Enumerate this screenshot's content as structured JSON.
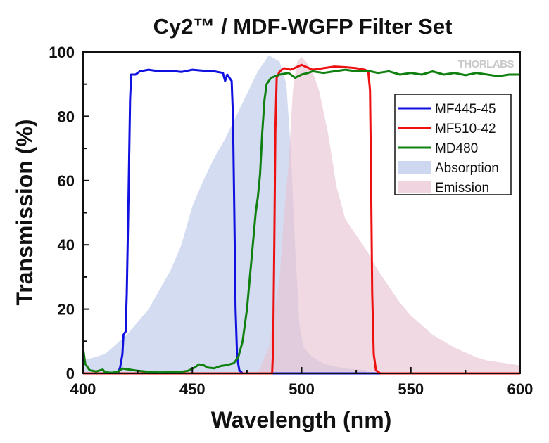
{
  "chart_data": {
    "type": "line",
    "title": "Cy2™ / MDF-WGFP Filter Set",
    "xlabel": "Wavelength (nm)",
    "ylabel": "Transmission (%)",
    "xlim": [
      400,
      600
    ],
    "ylim": [
      0,
      100
    ],
    "x_ticks": [
      "400",
      "450",
      "500",
      "550",
      "600"
    ],
    "y_ticks": [
      "0",
      "20",
      "40",
      "60",
      "80",
      "100"
    ],
    "watermark": "THORLABS",
    "legend_position": "top-right",
    "grid": false,
    "series": [
      {
        "name": "MF445-45",
        "kind": "line",
        "color": "#1010e0",
        "points": [
          [
            400,
            0
          ],
          [
            416,
            0
          ],
          [
            417,
            2
          ],
          [
            418,
            6
          ],
          [
            418.5,
            12
          ],
          [
            419.5,
            13
          ],
          [
            420,
            25
          ],
          [
            420.8,
            55
          ],
          [
            421.5,
            85
          ],
          [
            422,
            93
          ],
          [
            424,
            93
          ],
          [
            426,
            94
          ],
          [
            430,
            94.5
          ],
          [
            435,
            94
          ],
          [
            440,
            94.2
          ],
          [
            445,
            93.8
          ],
          [
            450,
            94.5
          ],
          [
            455,
            94.2
          ],
          [
            460,
            94
          ],
          [
            464,
            93.5
          ],
          [
            465,
            91
          ],
          [
            466,
            93
          ],
          [
            467,
            92
          ],
          [
            468,
            91
          ],
          [
            468.6,
            80
          ],
          [
            469.2,
            50
          ],
          [
            469.8,
            20
          ],
          [
            470.5,
            5
          ],
          [
            471.5,
            1
          ],
          [
            473,
            0
          ],
          [
            600,
            0
          ]
        ]
      },
      {
        "name": "MF510-42",
        "kind": "line",
        "color": "#ee1010",
        "points": [
          [
            400,
            0
          ],
          [
            486.5,
            0
          ],
          [
            487,
            8
          ],
          [
            487.5,
            40
          ],
          [
            488,
            75
          ],
          [
            488.6,
            92
          ],
          [
            490,
            94
          ],
          [
            492,
            95
          ],
          [
            495,
            94.5
          ],
          [
            500,
            96
          ],
          [
            505,
            94.5
          ],
          [
            510,
            95
          ],
          [
            515,
            95.5
          ],
          [
            520,
            95.3
          ],
          [
            525,
            95
          ],
          [
            529,
            94.5
          ],
          [
            530.5,
            94
          ],
          [
            531.3,
            88
          ],
          [
            531.8,
            60
          ],
          [
            532.3,
            25
          ],
          [
            533,
            6
          ],
          [
            534,
            1
          ],
          [
            536,
            0
          ],
          [
            600,
            0
          ]
        ]
      },
      {
        "name": "MD480",
        "kind": "line",
        "color": "#108010",
        "points": [
          [
            400,
            8
          ],
          [
            401,
            3
          ],
          [
            403,
            1
          ],
          [
            406,
            0.6
          ],
          [
            409,
            1.2
          ],
          [
            410,
            0.4
          ],
          [
            413,
            0.2
          ],
          [
            416,
            0.5
          ],
          [
            418,
            1.5
          ],
          [
            421,
            1.2
          ],
          [
            425,
            0.8
          ],
          [
            430,
            0.5
          ],
          [
            435,
            0.3
          ],
          [
            440,
            0.4
          ],
          [
            445,
            0.5
          ],
          [
            448,
            0.8
          ],
          [
            451,
            1.8
          ],
          [
            453,
            2.8
          ],
          [
            455,
            2.6
          ],
          [
            457,
            1.8
          ],
          [
            460,
            1.6
          ],
          [
            463,
            2.3
          ],
          [
            466,
            2.6
          ],
          [
            469,
            3.2
          ],
          [
            471,
            5
          ],
          [
            473,
            10
          ],
          [
            475,
            20
          ],
          [
            477,
            35
          ],
          [
            479,
            50
          ],
          [
            480,
            55
          ],
          [
            481,
            62
          ],
          [
            482,
            75
          ],
          [
            483,
            85
          ],
          [
            484,
            90
          ],
          [
            486,
            92
          ],
          [
            490,
            93
          ],
          [
            494,
            93.5
          ],
          [
            497,
            92
          ],
          [
            500,
            93
          ],
          [
            503,
            93.5
          ],
          [
            505,
            94
          ],
          [
            510,
            93.5
          ],
          [
            515,
            94
          ],
          [
            520,
            94.5
          ],
          [
            525,
            94
          ],
          [
            530,
            94.2
          ],
          [
            535,
            93.5
          ],
          [
            540,
            94
          ],
          [
            545,
            93
          ],
          [
            550,
            93.5
          ],
          [
            555,
            93
          ],
          [
            560,
            94
          ],
          [
            565,
            93
          ],
          [
            570,
            93.5
          ],
          [
            575,
            92.8
          ],
          [
            580,
            93.5
          ],
          [
            585,
            93
          ],
          [
            590,
            92.5
          ],
          [
            595,
            93
          ],
          [
            600,
            93
          ]
        ]
      },
      {
        "name": "Absorption",
        "kind": "area",
        "color": "#b9c6ea",
        "points": [
          [
            400,
            4
          ],
          [
            410,
            6
          ],
          [
            420,
            12
          ],
          [
            430,
            20
          ],
          [
            440,
            32
          ],
          [
            445,
            40
          ],
          [
            450,
            52
          ],
          [
            455,
            60
          ],
          [
            460,
            67
          ],
          [
            465,
            73
          ],
          [
            470,
            80
          ],
          [
            475,
            87
          ],
          [
            480,
            94
          ],
          [
            485,
            99
          ],
          [
            490,
            97
          ],
          [
            493,
            90
          ],
          [
            495,
            70
          ],
          [
            497,
            40
          ],
          [
            499,
            15
          ],
          [
            501,
            8
          ],
          [
            505,
            5
          ],
          [
            510,
            3
          ],
          [
            520,
            1.5
          ],
          [
            530,
            1
          ],
          [
            530,
            0
          ]
        ]
      },
      {
        "name": "Emission",
        "kind": "area",
        "color": "#e9c2d2",
        "points": [
          [
            480,
            0
          ],
          [
            485,
            8
          ],
          [
            490,
            30
          ],
          [
            492,
            50
          ],
          [
            494,
            65
          ],
          [
            496,
            88
          ],
          [
            498,
            97
          ],
          [
            500,
            98.5
          ],
          [
            502,
            97
          ],
          [
            505,
            94
          ],
          [
            508,
            88
          ],
          [
            512,
            75
          ],
          [
            516,
            58
          ],
          [
            520,
            48
          ],
          [
            525,
            43
          ],
          [
            530,
            38
          ],
          [
            535,
            32
          ],
          [
            540,
            27
          ],
          [
            545,
            22
          ],
          [
            550,
            18
          ],
          [
            555,
            15
          ],
          [
            560,
            12
          ],
          [
            565,
            10
          ],
          [
            570,
            8
          ],
          [
            575,
            6.5
          ],
          [
            580,
            5
          ],
          [
            585,
            4
          ],
          [
            590,
            3.5
          ],
          [
            595,
            3
          ],
          [
            600,
            2.5
          ],
          [
            600,
            0
          ]
        ]
      }
    ]
  }
}
